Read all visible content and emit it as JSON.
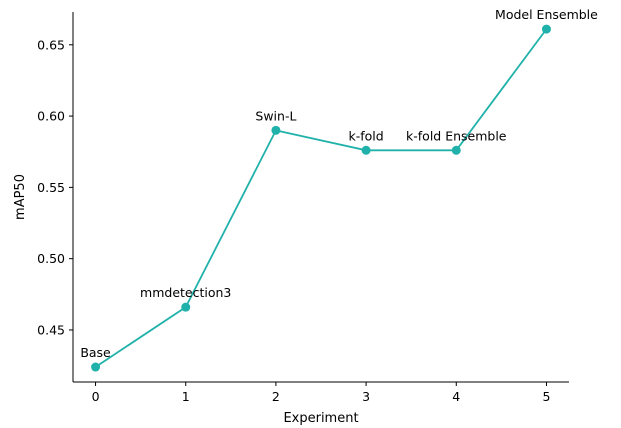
{
  "chart_data": {
    "type": "line",
    "xlabel": "Experiment",
    "ylabel": "mAP50",
    "xlim": [
      -0.25,
      5.25
    ],
    "ylim": [
      0.4135,
      0.673
    ],
    "x_ticks": [
      0,
      1,
      2,
      3,
      4,
      5
    ],
    "y_ticks": [
      0.45,
      0.5,
      0.55,
      0.6,
      0.65
    ],
    "grid": false,
    "color": "#20b2aa",
    "series": [
      {
        "x": [
          0,
          1,
          2,
          3,
          4,
          5
        ],
        "y": [
          0.424,
          0.466,
          0.59,
          0.576,
          0.576,
          0.661
        ],
        "point_labels": [
          "Base",
          "mmdetection3",
          "Swin-L",
          "k-fold",
          "k-fold Ensemble",
          "Model Ensemble"
        ]
      }
    ]
  }
}
